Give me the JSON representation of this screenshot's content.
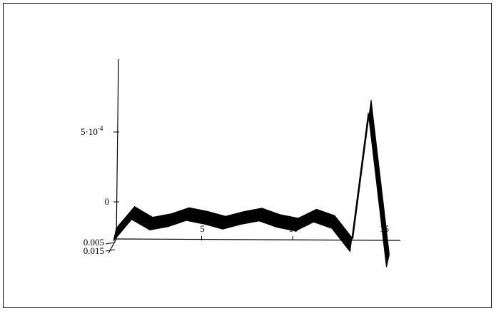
{
  "chart_data": {
    "type": "surface",
    "title": "",
    "xlabel": "",
    "ylabel": "",
    "zlabel": "",
    "x": [
      0,
      1,
      2,
      3,
      4,
      5,
      6,
      7,
      8,
      9,
      10,
      11,
      12,
      13,
      14,
      15
    ],
    "values": [
      -0.00028,
      -0.00012,
      -0.00019,
      -0.00016,
      -0.00011,
      -0.00013,
      -0.00016,
      -0.00012,
      -9e-05,
      -0.00013,
      -0.00015,
      -8e-05,
      -0.00012,
      -0.00028,
      0.00072,
      -0.00038
    ],
    "x_ticks": [
      "5",
      "10",
      "15"
    ],
    "x_tick_values": [
      5,
      10,
      15
    ],
    "z_ticks": [
      {
        "value": 0,
        "label": "0"
      },
      {
        "value": 0.0005,
        "label_base": "5·10",
        "label_exp": "-4"
      }
    ],
    "depth_ticks": [
      "0.005",
      "0.015"
    ],
    "zlim": [
      -0.0003,
      0.00095
    ],
    "colors": {
      "surface": "#000000",
      "axes": "#000000",
      "background": "#ffffff"
    }
  }
}
